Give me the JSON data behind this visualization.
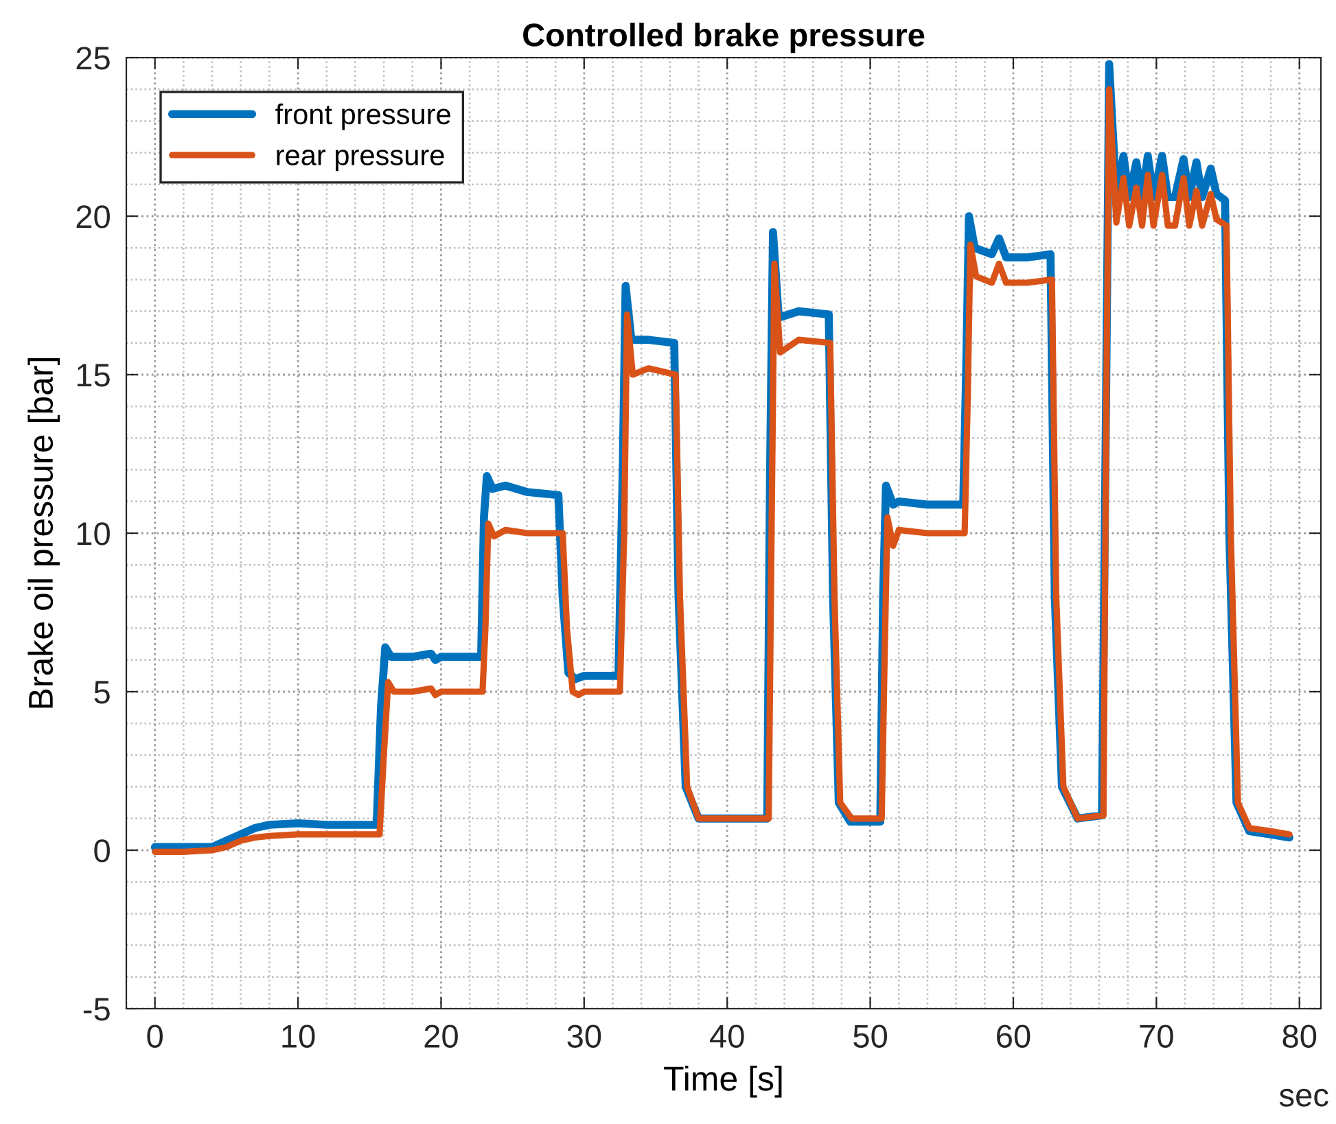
{
  "chart_data": {
    "type": "line",
    "title": "Controlled brake pressure",
    "xlabel": "Time [s]",
    "ylabel": "Brake oil pressure [bar]",
    "annotations": [
      "sec"
    ],
    "xlim": [
      -2,
      81.5
    ],
    "ylim": [
      -5,
      25
    ],
    "xticks": [
      0,
      10,
      20,
      30,
      40,
      50,
      60,
      70,
      80
    ],
    "yticks": [
      -5,
      0,
      5,
      10,
      15,
      20,
      25
    ],
    "grid": true,
    "legend": "top left",
    "line_style": "solid",
    "marker": "none",
    "series": [
      {
        "name": "front pressure",
        "color": "#0072bd",
        "x": [
          0,
          2,
          4,
          5,
          6,
          7,
          8,
          10,
          12,
          15.5,
          15.8,
          16.1,
          16.5,
          18,
          19.3,
          19.6,
          20,
          22.8,
          23.0,
          23.2,
          23.6,
          24.5,
          26,
          28.2,
          28.5,
          28.9,
          29.4,
          30,
          31,
          32.4,
          32.7,
          32.9,
          33.3,
          34.5,
          36.3,
          36.6,
          37.1,
          38,
          40,
          42.8,
          43.0,
          43.2,
          43.6,
          45,
          47.1,
          47.4,
          47.8,
          48.6,
          50.7,
          50.9,
          51.1,
          51.6,
          52,
          54,
          56.5,
          56.7,
          56.9,
          57.3,
          58.5,
          59,
          59.5,
          61,
          62.6,
          62.9,
          63.4,
          64.5,
          66.2,
          66.5,
          66.7,
          67.2,
          67.7,
          68.1,
          68.6,
          69.0,
          69.4,
          69.8,
          70.4,
          70.8,
          71.3,
          71.9,
          72.3,
          72.8,
          73.2,
          73.8,
          74.2,
          74.8,
          75.1,
          75.6,
          76.5,
          78,
          79.3
        ],
        "values": [
          0.1,
          0.1,
          0.1,
          0.3,
          0.5,
          0.7,
          0.8,
          0.85,
          0.8,
          0.8,
          4.5,
          6.4,
          6.1,
          6.1,
          6.2,
          6.0,
          6.1,
          6.1,
          10.5,
          11.8,
          11.4,
          11.5,
          11.3,
          11.2,
          8.0,
          5.6,
          5.4,
          5.5,
          5.5,
          5.5,
          12.0,
          17.8,
          16.1,
          16.1,
          16.0,
          8.0,
          2.0,
          1.0,
          1.0,
          1.0,
          12.0,
          19.5,
          16.8,
          17.0,
          16.9,
          8.0,
          1.5,
          0.9,
          0.9,
          8.0,
          11.5,
          10.9,
          11.0,
          10.9,
          10.9,
          15.0,
          20.0,
          19.0,
          18.8,
          19.3,
          18.7,
          18.7,
          18.8,
          8.0,
          2.0,
          1.0,
          1.1,
          15.0,
          24.8,
          20.6,
          21.9,
          20.6,
          21.7,
          20.6,
          21.9,
          20.6,
          21.9,
          20.6,
          20.6,
          21.8,
          20.6,
          21.7,
          20.6,
          21.5,
          20.7,
          20.5,
          10.0,
          1.5,
          0.6,
          0.5,
          0.4
        ]
      },
      {
        "name": "rear pressure",
        "color": "#d95319",
        "x": [
          0,
          2,
          4,
          5,
          6,
          7,
          8,
          10,
          12,
          15.7,
          16.0,
          16.3,
          16.7,
          18,
          19.3,
          19.6,
          20,
          22.9,
          23.1,
          23.3,
          23.7,
          24.5,
          26,
          28.5,
          28.8,
          29.2,
          29.6,
          30,
          31,
          32.5,
          32.8,
          33.0,
          33.4,
          34.5,
          36.4,
          36.7,
          37.2,
          38,
          40,
          42.9,
          43.1,
          43.3,
          43.7,
          45,
          47.2,
          47.5,
          47.9,
          48.7,
          50.8,
          51.0,
          51.2,
          51.6,
          52,
          54,
          56.6,
          56.8,
          57.0,
          57.4,
          58.5,
          59,
          59.5,
          61,
          62.7,
          63.0,
          63.5,
          64.5,
          66.3,
          66.5,
          66.7,
          67.2,
          67.7,
          68.1,
          68.6,
          69.0,
          69.4,
          69.8,
          70.4,
          70.8,
          71.3,
          71.9,
          72.3,
          72.8,
          73.2,
          73.8,
          74.2,
          74.9,
          75.2,
          75.7,
          76.5,
          78,
          79.3
        ],
        "values": [
          -0.05,
          -0.05,
          0.0,
          0.1,
          0.3,
          0.4,
          0.45,
          0.5,
          0.5,
          0.5,
          3.0,
          5.3,
          5.0,
          5.0,
          5.1,
          4.9,
          5.0,
          5.0,
          7.0,
          10.3,
          9.9,
          10.1,
          10.0,
          10.0,
          7.0,
          5.0,
          4.9,
          5.0,
          5.0,
          5.0,
          10.0,
          16.9,
          15.0,
          15.2,
          15.0,
          8.0,
          2.0,
          1.0,
          1.0,
          1.0,
          10.0,
          18.5,
          15.7,
          16.1,
          16.0,
          8.0,
          1.5,
          1.0,
          1.0,
          6.0,
          10.5,
          9.6,
          10.1,
          10.0,
          10.0,
          14.0,
          19.1,
          18.1,
          17.9,
          18.5,
          17.9,
          17.9,
          18.0,
          8.0,
          2.0,
          1.0,
          1.1,
          14.0,
          24.0,
          19.8,
          21.2,
          19.7,
          20.9,
          19.7,
          21.3,
          19.7,
          21.3,
          19.7,
          19.7,
          21.2,
          19.7,
          20.8,
          19.7,
          20.7,
          19.9,
          19.7,
          10.0,
          1.5,
          0.7,
          0.6,
          0.5
        ]
      }
    ]
  }
}
